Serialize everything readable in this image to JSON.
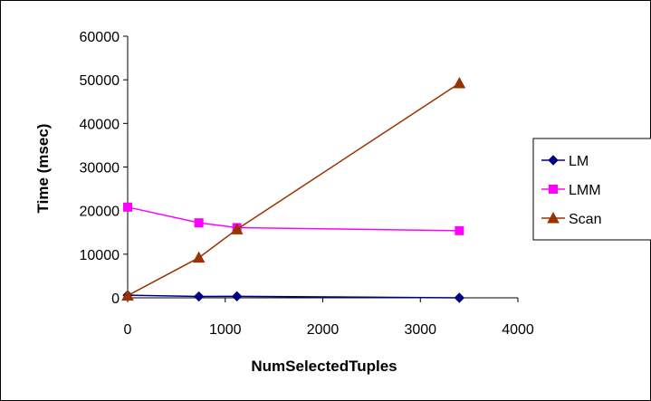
{
  "chart_data": {
    "type": "line",
    "title": "",
    "xlabel": "NumSelectedTuples",
    "ylabel": "Time (msec)",
    "xlim": [
      0,
      4000
    ],
    "ylim": [
      0,
      60000
    ],
    "xticks": [
      0,
      1000,
      2000,
      3000,
      4000
    ],
    "yticks": [
      0,
      10000,
      20000,
      30000,
      40000,
      50000,
      60000
    ],
    "grid": false,
    "legend_position": "right",
    "series": [
      {
        "name": "LM",
        "color": "#000080",
        "marker": "diamond",
        "x": [
          0,
          730,
          1120,
          3400
        ],
        "y": [
          600,
          300,
          350,
          0
        ]
      },
      {
        "name": "LMM",
        "color": "#FF00FF",
        "marker": "square",
        "x": [
          0,
          730,
          1120,
          3400
        ],
        "y": [
          20800,
          17200,
          16100,
          15400
        ]
      },
      {
        "name": "Scan",
        "color": "#993300",
        "marker": "triangle",
        "x": [
          0,
          730,
          1120,
          3400
        ],
        "y": [
          500,
          9200,
          15700,
          49200
        ]
      }
    ]
  }
}
